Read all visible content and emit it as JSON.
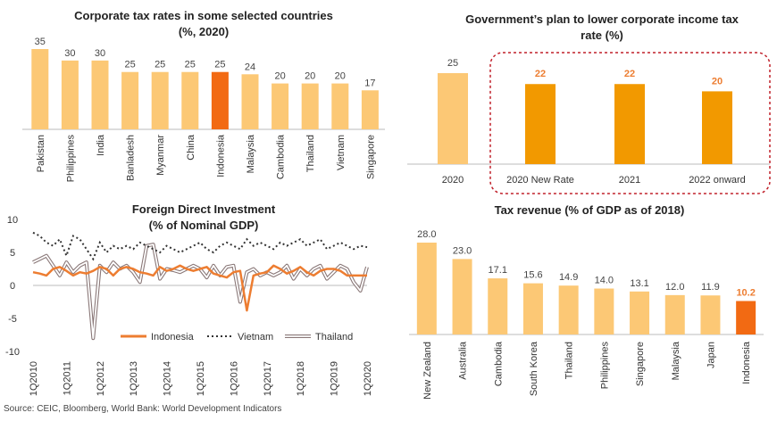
{
  "source": "Source: CEIC, Bloomberg, World Bank: World Development Indicators",
  "colors": {
    "bar": "#FCC875",
    "highlight": "#F26A13",
    "orange": "#F29900",
    "indonesia": "#ED7D31",
    "vietnam": "#333333",
    "thailand": "#B9A8A8",
    "dashbox": "#C0202A"
  },
  "chart_data": [
    {
      "type": "bar",
      "title": "Corporate tax rates in some selected countries",
      "subtitle": "(%, 2020)",
      "categories": [
        "Pakistan",
        "Philippines",
        "India",
        "Banladesh",
        "Myanmar",
        "China",
        "Indonesia",
        "Malaysia",
        "Cambodia",
        "Thailand",
        "Vietnam",
        "Singapore"
      ],
      "values": [
        35,
        30,
        30,
        25,
        25,
        25,
        25,
        24,
        20,
        20,
        20,
        17
      ],
      "highlight": "Indonesia",
      "ylim": [
        0,
        40
      ]
    },
    {
      "type": "bar",
      "title": "Government’s plan to lower corporate income tax",
      "subtitle": "rate (%)",
      "categories": [
        "2020",
        "2020 New Rate",
        "2021",
        "2022 onward"
      ],
      "values": [
        25,
        22,
        22,
        20
      ],
      "ylim": [
        0,
        30
      ]
    },
    {
      "type": "line",
      "title": "Foreign Direct Investment",
      "subtitle": "(% of Nominal GDP)",
      "ylim": [
        -10,
        10
      ],
      "yticks": [
        10,
        5,
        0,
        -5,
        -10
      ],
      "x_labels": [
        "1Q2010",
        "1Q2011",
        "1Q2012",
        "1Q2013",
        "1Q2014",
        "1Q2015",
        "1Q2016",
        "1Q2017",
        "1Q2018",
        "1Q2019",
        "1Q2020"
      ],
      "legend_position": "bottom",
      "series": [
        {
          "name": "Indonesia",
          "values": [
            2,
            1.8,
            1.5,
            2.5,
            2.8,
            2.2,
            1.5,
            2,
            1.8,
            2.2,
            2.8,
            2.5,
            1.5,
            2.5,
            2.8,
            2.5,
            2,
            1.8,
            1.5,
            2.8,
            2.2,
            2.5,
            3,
            2.5,
            2.2,
            2.5,
            2.8,
            1.8,
            1.5,
            1.2,
            2,
            2.2,
            -3.8,
            1.5,
            1.8,
            2,
            3,
            2.5,
            1.8,
            2.2,
            2.8,
            2,
            1.5,
            2.2,
            2.5,
            2.5,
            2.2,
            1.5,
            1.5,
            1.5,
            1.5
          ]
        },
        {
          "name": "Vietnam",
          "values": [
            8,
            7.5,
            6.5,
            6,
            7,
            4.5,
            7.5,
            7,
            5.5,
            4,
            6.5,
            5,
            6,
            5.5,
            6,
            5.5,
            6.5,
            6,
            5.5,
            5,
            6,
            5.5,
            5,
            5.5,
            6,
            6.5,
            5.5,
            5,
            6,
            6.5,
            6,
            5.5,
            7,
            6,
            6.5,
            6,
            5.5,
            6.5,
            6,
            6.5,
            7,
            6,
            6.5,
            7,
            5.5,
            6,
            6.5,
            6,
            5.5,
            6,
            5.8
          ]
        },
        {
          "name": "Thailand",
          "values": [
            3.5,
            4,
            4.5,
            3,
            1.5,
            3.5,
            2,
            3,
            3.5,
            -8,
            3,
            2,
            3.5,
            2.5,
            3,
            2,
            0.5,
            6,
            6.2,
            1,
            2.5,
            2.3,
            2,
            2.5,
            3,
            2.5,
            1.2,
            3,
            1.5,
            2.8,
            3,
            -2.5,
            2,
            2.5,
            1.5,
            2,
            1.5,
            2,
            3,
            1,
            2.5,
            1.5,
            2.5,
            3,
            1,
            2,
            3,
            2.5,
            0.5,
            -0.8,
            2.8
          ]
        }
      ]
    },
    {
      "type": "bar",
      "title": "Tax revenue (% of GDP as of 2018)",
      "categories": [
        "New Zealand",
        "Australia",
        "Cambodia",
        "South Korea",
        "Thailand",
        "Philippines",
        "Singapore",
        "Malaysia",
        "Japan",
        "Indonesia"
      ],
      "values": [
        28.0,
        23.0,
        17.1,
        15.6,
        14.9,
        14.0,
        13.1,
        12.0,
        11.9,
        10.2
      ],
      "value_labels": [
        "28.0",
        "23.0",
        "17.1",
        "15.6",
        "14.9",
        "14.0",
        "13.1",
        "12.0",
        "11.9",
        "10.2"
      ],
      "highlight": "Indonesia",
      "ylim": [
        0,
        30
      ]
    }
  ]
}
